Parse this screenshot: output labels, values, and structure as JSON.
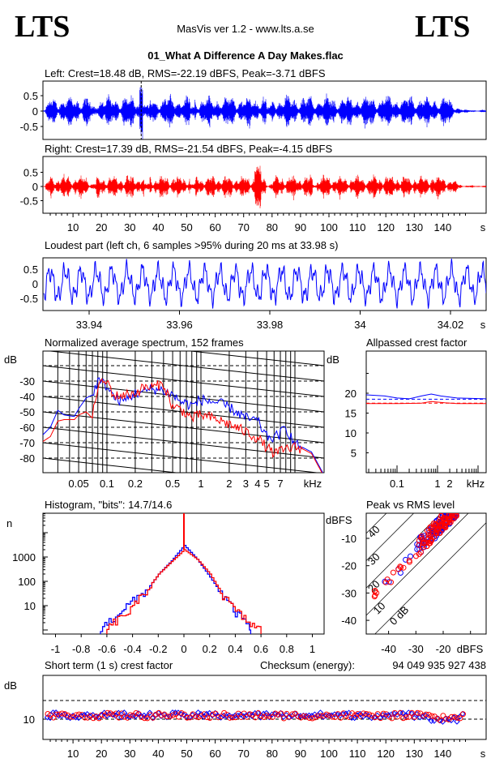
{
  "header": {
    "logo_left": "LTS",
    "logo_right": "LTS",
    "app": "MasVis ver 1.2 - www.lts.a.se",
    "file": "01_What A Difference A Day Makes.flac"
  },
  "colors": {
    "left": "#0000ff",
    "right": "#ff0000",
    "grid": "#000000"
  },
  "chart_data": [
    {
      "id": "left_wave",
      "type": "line",
      "title": "Left: Crest=18.48 dB, RMS=-22.19 dBFS, Peak=-3.71 dBFS",
      "yticks": [
        "0.5",
        "0",
        "-0.5"
      ],
      "ylim": [
        -1,
        1
      ],
      "xlim": [
        0,
        148
      ],
      "marker_time_s": 33.98,
      "grid": false
    },
    {
      "id": "right_wave",
      "type": "line",
      "title": "Right: Crest=17.39 dB, RMS=-21.54 dBFS, Peak=-4.15 dBFS",
      "yticks": [
        "0.5",
        "0",
        "-0.5"
      ],
      "ylim": [
        -1,
        1
      ],
      "xlim": [
        0,
        148
      ],
      "xticks": [
        "10",
        "20",
        "30",
        "40",
        "50",
        "60",
        "70",
        "80",
        "90",
        "100",
        "110",
        "120",
        "130",
        "140"
      ],
      "xunit": "s"
    },
    {
      "id": "loudest",
      "type": "line",
      "title": "Loudest part (left  ch, 6 samples >95% during 20 ms at 33.98 s)",
      "yticks": [
        "0.5",
        "0",
        "-0.5"
      ],
      "ylim": [
        -1,
        1
      ],
      "xticks": [
        "33.94",
        "33.96",
        "33.98",
        "34",
        "34.02"
      ],
      "xunit": "s"
    },
    {
      "id": "spectrum",
      "type": "line",
      "title": "Normalized average spectrum, 152 frames",
      "ylabel": "dB",
      "yticks": [
        "-30",
        "-40",
        "-50",
        "-60",
        "-70",
        "-80"
      ],
      "ylim": [
        -90,
        -10
      ],
      "xticks": [
        "0.05",
        "0.1",
        "0.2",
        "0.5",
        "1",
        "2",
        "3",
        "4",
        "5",
        "7"
      ],
      "xunit": "kHz",
      "xscale": "log",
      "xlim": [
        0.02,
        20
      ],
      "grid": true,
      "series": [
        {
          "channel": "left",
          "points": [
            [
              0.02,
              -66
            ],
            [
              0.025,
              -60
            ],
            [
              0.03,
              -49
            ],
            [
              0.035,
              -52
            ],
            [
              0.045,
              -53
            ],
            [
              0.05,
              -48
            ],
            [
              0.06,
              -41
            ],
            [
              0.07,
              -39
            ],
            [
              0.08,
              -30
            ],
            [
              0.1,
              -33
            ],
            [
              0.12,
              -41
            ],
            [
              0.15,
              -43
            ],
            [
              0.2,
              -38
            ],
            [
              0.25,
              -37
            ],
            [
              0.3,
              -35
            ],
            [
              0.4,
              -36
            ],
            [
              0.5,
              -39
            ],
            [
              0.6,
              -43
            ],
            [
              0.8,
              -46
            ],
            [
              1,
              -42
            ],
            [
              1.5,
              -44
            ],
            [
              2,
              -47
            ],
            [
              3,
              -54
            ],
            [
              4,
              -56
            ],
            [
              5,
              -66
            ],
            [
              6,
              -67
            ],
            [
              7,
              -64
            ],
            [
              8,
              -60
            ],
            [
              10,
              -71
            ],
            [
              12,
              -73
            ],
            [
              15,
              -76
            ],
            [
              20,
              -90
            ]
          ]
        },
        {
          "channel": "right",
          "points": [
            [
              0.02,
              -70
            ],
            [
              0.025,
              -66
            ],
            [
              0.03,
              -56
            ],
            [
              0.035,
              -55
            ],
            [
              0.045,
              -55
            ],
            [
              0.05,
              -52
            ],
            [
              0.06,
              -50
            ],
            [
              0.07,
              -54
            ],
            [
              0.08,
              -33
            ],
            [
              0.1,
              -30
            ],
            [
              0.12,
              -40
            ],
            [
              0.15,
              -39
            ],
            [
              0.2,
              -38
            ],
            [
              0.25,
              -34
            ],
            [
              0.3,
              -34
            ],
            [
              0.4,
              -32
            ],
            [
              0.5,
              -47
            ],
            [
              0.6,
              -48
            ],
            [
              0.8,
              -54
            ],
            [
              1,
              -52
            ],
            [
              1.5,
              -55
            ],
            [
              2,
              -58
            ],
            [
              3,
              -63
            ],
            [
              4,
              -67
            ],
            [
              5,
              -73
            ],
            [
              6,
              -77
            ],
            [
              7,
              -76
            ],
            [
              8,
              -74
            ],
            [
              10,
              -73
            ],
            [
              12,
              -74
            ],
            [
              15,
              -77
            ],
            [
              20,
              -91
            ]
          ]
        }
      ]
    },
    {
      "id": "allpassed",
      "type": "line",
      "title": "Allpassed crest factor",
      "ylabel": "dB",
      "yticks": [
        "20",
        "15",
        "10",
        "5"
      ],
      "ylim": [
        0,
        30
      ],
      "xticks": [
        "0.1",
        "1",
        "2"
      ],
      "xunit": "kHz",
      "xscale": "log",
      "xlim": [
        0.017,
        16
      ],
      "series": [
        {
          "channel": "left",
          "reference": 18.5,
          "points": [
            [
              0.017,
              19.6
            ],
            [
              0.05,
              19.3
            ],
            [
              0.1,
              18.8
            ],
            [
              0.2,
              18.6
            ],
            [
              0.4,
              19.3
            ],
            [
              0.7,
              19.8
            ],
            [
              1.2,
              19.3
            ],
            [
              3,
              18.8
            ],
            [
              16,
              18.6
            ]
          ]
        },
        {
          "channel": "right",
          "reference": 17.5,
          "points": [
            [
              0.017,
              17.4
            ],
            [
              0.1,
              17.4
            ],
            [
              0.4,
              17.5
            ],
            [
              0.7,
              17.9
            ],
            [
              1.5,
              17.6
            ],
            [
              3,
              17.4
            ],
            [
              16,
              17.4
            ]
          ]
        }
      ]
    },
    {
      "id": "histogram",
      "type": "line",
      "title": "Histogram, \"bits\": 14.7/14.6",
      "ylabel": "n",
      "yticks": [
        "1000",
        "100",
        "10"
      ],
      "yscale": "log",
      "xticks": [
        "-1",
        "-0.8",
        "-0.6",
        "-0.4",
        "-0.2",
        "0",
        "0.2",
        "0.4",
        "0.6",
        "0.8",
        "1"
      ],
      "xlim": [
        -1.1,
        1.1
      ],
      "series": [
        {
          "channel": "left",
          "points": [
            [
              -0.65,
              1
            ],
            [
              -0.6,
              2
            ],
            [
              -0.55,
              3
            ],
            [
              -0.5,
              6
            ],
            [
              -0.4,
              15
            ],
            [
              -0.3,
              40
            ],
            [
              -0.2,
              200
            ],
            [
              -0.1,
              700
            ],
            [
              0,
              3000
            ],
            [
              0.1,
              800
            ],
            [
              0.2,
              150
            ],
            [
              0.3,
              25
            ],
            [
              0.4,
              5
            ],
            [
              0.5,
              1.5
            ],
            [
              0.52,
              1
            ]
          ]
        },
        {
          "channel": "right",
          "points": [
            [
              -0.6,
              1
            ],
            [
              -0.55,
              2
            ],
            [
              -0.5,
              3
            ],
            [
              -0.4,
              8
            ],
            [
              -0.3,
              40
            ],
            [
              -0.2,
              200
            ],
            [
              -0.1,
              650
            ],
            [
              0,
              2000
            ],
            [
              0.1,
              800
            ],
            [
              0.2,
              200
            ],
            [
              0.3,
              25
            ],
            [
              0.4,
              6
            ],
            [
              0.5,
              2
            ],
            [
              0.6,
              1
            ]
          ]
        }
      ]
    },
    {
      "id": "peak_rms",
      "type": "scatter",
      "title": "Peak vs RMS level",
      "ylabel": "dBFS",
      "yticks": [
        "-10",
        "-20",
        "-30",
        "-40"
      ],
      "xticks": [
        "-40",
        "-30",
        "-20"
      ],
      "xunit": "dBFS",
      "diagonal_labels": [
        "40",
        "30",
        "20",
        "10",
        "0 dB"
      ],
      "rms_range_dbfs": [
        -48,
        -15
      ],
      "crest_range_db": [
        12,
        20
      ]
    },
    {
      "id": "short_crest",
      "type": "scatter",
      "title": "Short term (1 s) crest factor",
      "checksum_label": "Checksum (energy):",
      "checksum": "94 049 935 927 438",
      "ylabel": "dB",
      "yticks": [
        "10"
      ],
      "dashed_levels_db": [
        10,
        20
      ],
      "xticks": [
        "10",
        "20",
        "30",
        "40",
        "50",
        "60",
        "70",
        "80",
        "90",
        "100",
        "110",
        "120",
        "130",
        "140"
      ],
      "xunit": "s",
      "typical_range_db": [
        9,
        15
      ]
    }
  ]
}
